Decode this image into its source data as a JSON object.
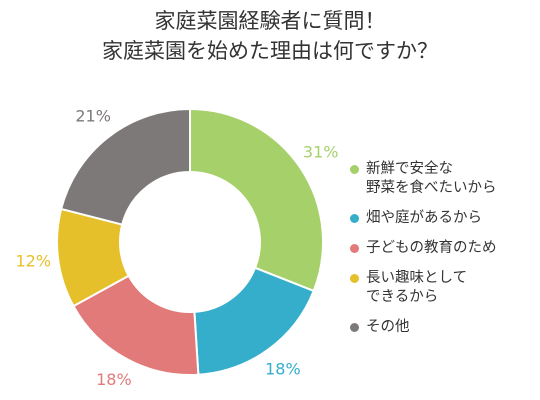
{
  "title": {
    "line1": "家庭菜園経験者に質問！",
    "line2": "家庭菜園を始めた理由は何ですか？"
  },
  "chart_data": {
    "type": "pie",
    "donut": true,
    "legend_position": "right",
    "categories": [
      "新鮮で安全な\n野菜を食べたいから",
      "畑や庭があるから",
      "子どもの教育のため",
      "長い趣味として\nできるから",
      "その他"
    ],
    "values": [
      31,
      18,
      18,
      12,
      21
    ],
    "value_labels": [
      "31%",
      "18%",
      "18%",
      "12%",
      "21%"
    ],
    "colors": [
      "#a6d06a",
      "#35aecb",
      "#e27a7a",
      "#e5c02b",
      "#7d7978"
    ]
  }
}
